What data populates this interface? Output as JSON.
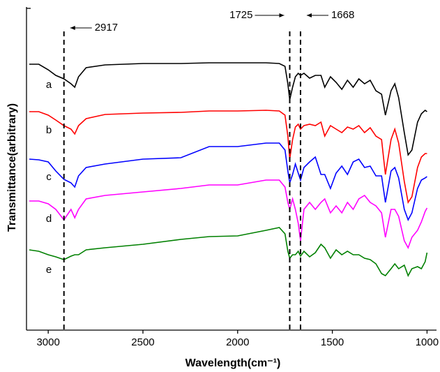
{
  "chart_data": {
    "type": "line",
    "xlabel": "Wavelength(cm⁻¹)",
    "ylabel": "Transmittance(arbitrary)",
    "x": [
      3100,
      3050,
      3000,
      2960,
      2917,
      2880,
      2860,
      2840,
      2800,
      2700,
      2500,
      2300,
      2150,
      2000,
      1850,
      1780,
      1750,
      1735,
      1725,
      1710,
      1695,
      1680,
      1668,
      1650,
      1620,
      1590,
      1560,
      1540,
      1510,
      1480,
      1450,
      1420,
      1390,
      1360,
      1330,
      1300,
      1270,
      1240,
      1220,
      1190,
      1170,
      1150,
      1120,
      1100,
      1080,
      1050,
      1030,
      1010,
      1000
    ],
    "xlim": [
      3100,
      950
    ],
    "xticks": [
      3000,
      2500,
      2000,
      1500,
      1000
    ],
    "ylim": [
      0,
      463
    ],
    "series": [
      {
        "name": "a",
        "color": "#000000",
        "values": [
          381,
          381,
          373,
          365,
          360,
          353,
          348,
          363,
          376,
          380,
          382,
          382,
          383,
          383,
          383,
          382,
          378,
          353,
          330,
          348,
          363,
          368,
          365,
          368,
          361,
          365,
          365,
          348,
          363,
          355,
          345,
          358,
          348,
          360,
          353,
          358,
          343,
          338,
          308,
          343,
          353,
          333,
          283,
          251,
          258,
          298,
          310,
          315,
          313
        ]
      },
      {
        "name": "b",
        "color": "#ff0000",
        "values": [
          313,
          313,
          308,
          301,
          293,
          288,
          281,
          293,
          303,
          309,
          311,
          312,
          314,
          314,
          315,
          314,
          308,
          278,
          245,
          273,
          291,
          295,
          288,
          293,
          295,
          293,
          298,
          278,
          293,
          288,
          283,
          291,
          288,
          293,
          283,
          290,
          278,
          273,
          223,
          273,
          288,
          268,
          213,
          183,
          191,
          233,
          248,
          253,
          253
        ]
      },
      {
        "name": "c",
        "color": "#0000ff",
        "values": [
          245,
          244,
          241,
          228,
          216,
          211,
          205,
          221,
          233,
          238,
          245,
          247,
          263,
          263,
          268,
          268,
          258,
          228,
          211,
          223,
          238,
          225,
          215,
          233,
          241,
          248,
          223,
          223,
          203,
          225,
          235,
          223,
          241,
          245,
          233,
          235,
          221,
          221,
          183,
          228,
          233,
          218,
          173,
          158,
          168,
          203,
          215,
          218,
          220
        ]
      },
      {
        "name": "d",
        "color": "#ff00ff",
        "values": [
          185,
          185,
          181,
          173,
          158,
          173,
          161,
          173,
          188,
          193,
          198,
          203,
          208,
          208,
          215,
          215,
          205,
          183,
          173,
          188,
          173,
          153,
          128,
          173,
          183,
          173,
          183,
          188,
          168,
          178,
          168,
          183,
          173,
          188,
          193,
          183,
          178,
          168,
          133,
          173,
          173,
          163,
          128,
          118,
          133,
          143,
          155,
          170,
          175
        ]
      },
      {
        "name": "e",
        "color": "#008000",
        "values": [
          115,
          113,
          108,
          105,
          101,
          106,
          108,
          108,
          115,
          118,
          123,
          130,
          134,
          135,
          143,
          147,
          138,
          113,
          103,
          108,
          108,
          113,
          106,
          113,
          105,
          111,
          123,
          118,
          103,
          115,
          108,
          113,
          108,
          108,
          103,
          101,
          95,
          81,
          78,
          88,
          95,
          88,
          93,
          78,
          88,
          91,
          88,
          98,
          111
        ]
      }
    ],
    "annotations": [
      {
        "text": "2917",
        "x": 2917,
        "arrow": "left"
      },
      {
        "text": "1725",
        "x": 1725,
        "arrow": "right"
      },
      {
        "text": "1668",
        "x": 1668,
        "arrow": "left"
      }
    ]
  }
}
